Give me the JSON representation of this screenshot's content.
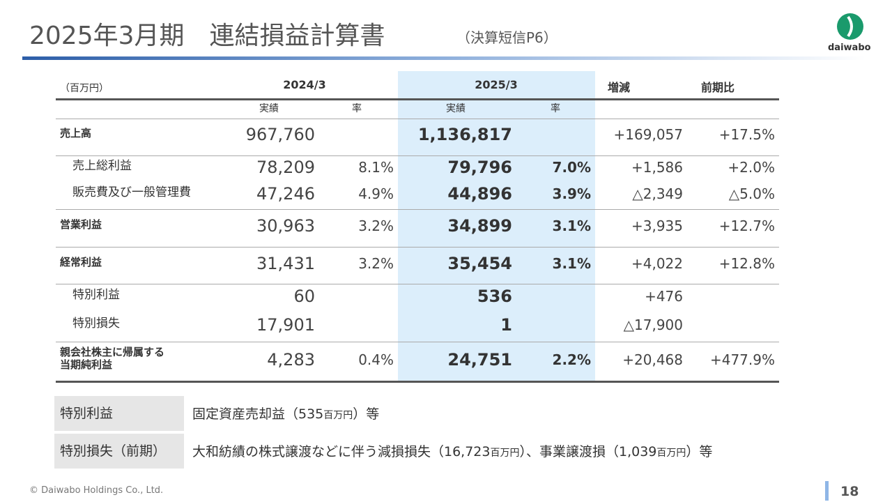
{
  "header": {
    "title": "2025年3月期　連結損益計算書",
    "subtitle": "（決算短信P6）",
    "logo": "daiwabo"
  },
  "table": {
    "unit": "（百万円）",
    "columns": [
      "2024/3",
      "2025/3",
      "増減",
      "前期比"
    ],
    "subcolumns": [
      "実績",
      "率",
      "実績",
      "率"
    ],
    "rows": [
      [
        "売上高",
        "967,760",
        null,
        "1,136,817",
        null,
        "+169,057",
        "+17.5%"
      ],
      [
        "売上総利益",
        "78,209",
        "8.1%",
        "79,796",
        "7.0%",
        "+1,586",
        "+2.0%"
      ],
      [
        "販売費及び一般管理費",
        "47,246",
        "4.9%",
        "44,896",
        "3.9%",
        "△2,349",
        "△5.0%"
      ],
      [
        "営業利益",
        "30,963",
        "3.2%",
        "34,899",
        "3.1%",
        "+3,935",
        "+12.7%"
      ],
      [
        "経常利益",
        "31,431",
        "3.2%",
        "35,454",
        "3.1%",
        "+4,022",
        "+12.8%"
      ],
      [
        "特別利益",
        "60",
        null,
        "536",
        null,
        "+476",
        null
      ],
      [
        "特別損失",
        "17,901",
        null,
        "1",
        null,
        "△17,900",
        null
      ],
      [
        "親会社株主に帰属する\n当期純利益",
        "4,283",
        "0.4%",
        "24,751",
        "2.2%",
        "+20,468",
        "+477.9%"
      ]
    ]
  },
  "notes": [
    {
      "label": "特別利益",
      "text": [
        "固定資産売却益（535",
        "百万円",
        "）等"
      ]
    },
    {
      "label": "特別損失（前期）",
      "text": [
        "大和紡績の株式譲渡などに伴う減損損失（16,723",
        "百万円",
        "）、事業譲渡損（1,039",
        "百万円",
        "）等"
      ]
    }
  ],
  "footer": {
    "copyright": "© Daiwabo Holdings Co., Ltd.",
    "page": "18"
  }
}
